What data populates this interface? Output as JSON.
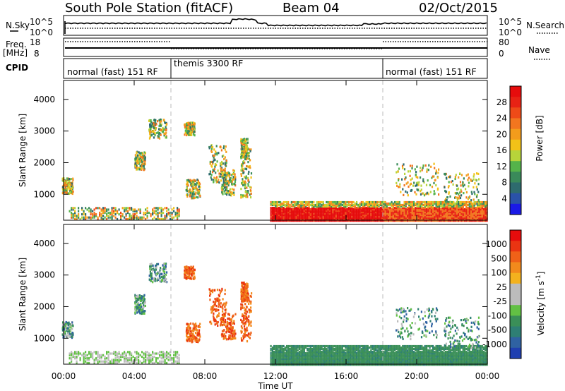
{
  "header": {
    "station": "South Pole Station (fitACF)",
    "beam": "Beam 04",
    "date": "02/Oct/2015"
  },
  "top_panels": {
    "nsky_label": "N.Sky",
    "nsky_ticks": [
      "10^5",
      "10^0"
    ],
    "nsearch_label": "N.Search",
    "nsearch_ticks": [
      "10^5",
      "10^0"
    ],
    "freq_label": "Freq.",
    "freq_unit": "[MHz]",
    "freq_ticks": [
      "18",
      "8"
    ],
    "nave_label": "Nave",
    "nave_ticks": [
      "80",
      "0"
    ],
    "cpid_label": "CPID",
    "cpid_segments": [
      {
        "label": "normal (fast) 151 RF",
        "start_hour": 0,
        "end_hour": 6
      },
      {
        "label": "themis 3300 RF",
        "start_hour": 6,
        "end_hour": 18
      },
      {
        "label": "normal (fast) 151 RF",
        "start_hour": 18,
        "end_hour": 24
      }
    ]
  },
  "chart_data": [
    {
      "type": "heatmap",
      "title": "",
      "xlabel": "Time UT",
      "ylabel": "Slant Range [km]",
      "x_ticks": [
        "00:00",
        "04:00",
        "08:00",
        "12:00",
        "16:00",
        "20:00",
        "00:00"
      ],
      "xlim_hours": [
        0,
        24
      ],
      "y_ticks": [
        1000,
        2000,
        3000,
        4000
      ],
      "ylim": [
        180,
        4600
      ],
      "colorbar": {
        "label": "Power [dB]",
        "ticks": [
          "4",
          "8",
          "12",
          "16",
          "20",
          "24",
          "28"
        ],
        "colors": [
          "#1a1ae6",
          "#2a52a8",
          "#2e6b6e",
          "#3a8a5a",
          "#55b34a",
          "#b7d43a",
          "#f2c218",
          "#f39c1c",
          "#f2761f",
          "#ee4a18",
          "#e82214",
          "#e60c0c"
        ]
      }
    },
    {
      "type": "heatmap",
      "title": "",
      "xlabel": "Time UT",
      "ylabel": "Slant Range [km]",
      "x_ticks": [
        "00:00",
        "04:00",
        "08:00",
        "12:00",
        "16:00",
        "20:00",
        "00:00"
      ],
      "xlim_hours": [
        0,
        24
      ],
      "y_ticks": [
        1000,
        2000,
        3000,
        4000
      ],
      "ylim": [
        180,
        4600
      ],
      "colorbar": {
        "label": "Velocity [m s^-1]",
        "ticks": [
          "1000",
          "500",
          "100",
          "25",
          "-25",
          "-100",
          "-500",
          "-1000"
        ],
        "colors": [
          "#1f3fb0",
          "#2f62a2",
          "#2e7f74",
          "#3a8f58",
          "#62c044",
          "#bcbcbc",
          "#bcbcbc",
          "#f3b21e",
          "#f28a1c",
          "#ef6118",
          "#ea3412",
          "#e60c0c"
        ]
      }
    }
  ]
}
